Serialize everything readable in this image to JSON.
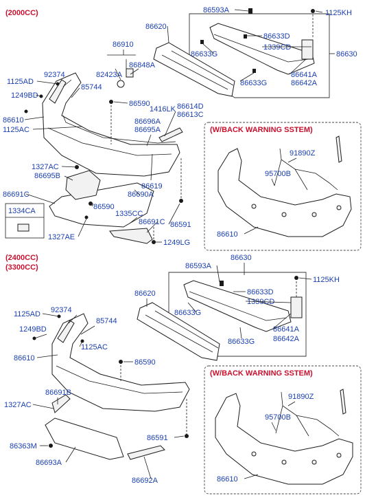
{
  "sections": {
    "top": {
      "engine_labels": [
        "(2000CC)"
      ],
      "warning_title": "(W/BACK WARNING SSTEM)"
    },
    "bottom": {
      "engine_labels": [
        "(2400CC)",
        "(3300CC)"
      ],
      "warning_title": "(W/BACK WARNING SSTEM)"
    }
  },
  "top_labels": {
    "p86593A": "86593A",
    "p1125KH": "1125KH",
    "p86620": "86620",
    "p86633D": "86633D",
    "p1339CD": "1339CD",
    "p86630": "86630",
    "p86633G_a": "86633G",
    "p86633G_b": "86633G",
    "p86641A": "86641A",
    "p86642A": "86642A",
    "p86910": "86910",
    "p82423A": "82423A",
    "p86848A": "86848A",
    "p1125AD": "1125AD",
    "p92374": "92374",
    "p85744": "85744",
    "p1249BD": "1249BD",
    "p86590": "86590",
    "p1416LK": "1416LK",
    "p86614D": "86614D",
    "p86613C": "86613C",
    "p86610": "86610",
    "p1125AC": "1125AC",
    "p86696A": "86696A",
    "p86695A": "86695A",
    "p1327AC": "1327AC",
    "p86695B": "86695B",
    "p86619": "86619",
    "p86690A": "86690A",
    "p86691C_a": "86691C",
    "p86590b": "86590",
    "p1335CC": "1335CC",
    "p86691C_b": "86691C",
    "p86591": "86591",
    "p1334CA": "1334CA",
    "p1327AE": "1327AE",
    "p1249LG": "1249LG",
    "w91890Z": "91890Z",
    "w95700B": "95700B",
    "w86610": "86610"
  },
  "bottom_labels": {
    "p86593A": "86593A",
    "p86630": "86630",
    "p1125KH": "1125KH",
    "p86620": "86620",
    "p86633D": "86633D",
    "p1339CD": "1339CD",
    "p86633G_a": "86633G",
    "p86633G_b": "86633G",
    "p86641A": "86641A",
    "p86642A": "86642A",
    "p1125AD": "1125AD",
    "p92374": "92374",
    "p85744": "85744",
    "p1249BD": "1249BD",
    "p1125AC": "1125AC",
    "p86610": "86610",
    "p86590": "86590",
    "p86691B": "86691B",
    "p1327AC": "1327AC",
    "p86591": "86591",
    "p86363M": "86363M",
    "p86693A": "86693A",
    "p86692A": "86692A",
    "w91890Z": "91890Z",
    "w95700B": "95700B",
    "w86610": "86610"
  }
}
